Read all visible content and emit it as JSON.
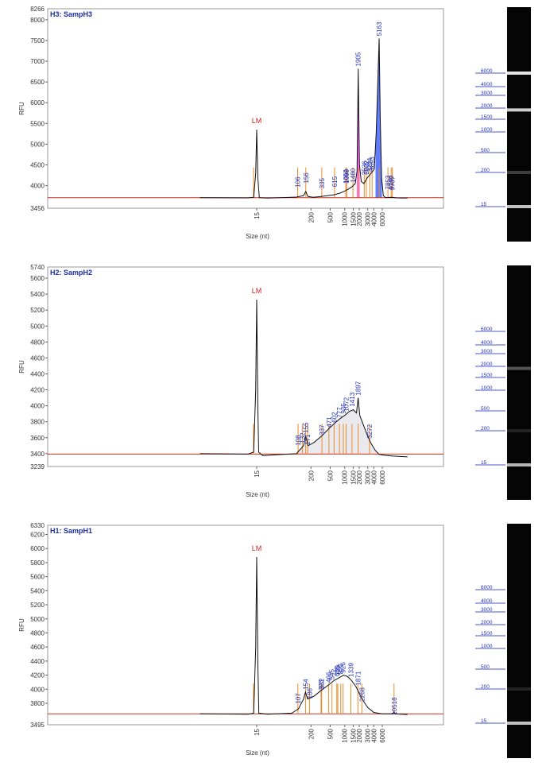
{
  "gel_ladder": [
    "6000",
    "4000",
    "3000",
    "2000",
    "1500",
    "1000",
    "500",
    "200",
    "15"
  ],
  "gel_ladder_nt": [
    6000,
    4000,
    3000,
    2000,
    1500,
    1000,
    500,
    200,
    15
  ],
  "chart_data": [
    {
      "type": "line",
      "title": "H3: SampH3",
      "xlabel": "Size (nt)",
      "ylabel": "RFU",
      "ymax_label": "8266",
      "ymin_label": "3456",
      "ylim": [
        3456,
        8266
      ],
      "yticks": [
        4000,
        4500,
        5000,
        5500,
        6000,
        6500,
        7000,
        7500,
        8000
      ],
      "xticks": [
        15,
        200,
        500,
        1000,
        1500,
        2000,
        3000,
        4000,
        6000
      ],
      "marker_label": "LM",
      "peak_labels": [
        {
          "text": "106",
          "x": 106,
          "y": 3900
        },
        {
          "text": "156",
          "x": 156,
          "y": 4000
        },
        {
          "text": "335",
          "x": 335,
          "y": 3870
        },
        {
          "text": "615",
          "x": 615,
          "y": 3910
        },
        {
          "text": "1052",
          "x": 1052,
          "y": 3990
        },
        {
          "text": "1099",
          "x": 1099,
          "y": 4000
        },
        {
          "text": "1480",
          "x": 1480,
          "y": 4020
        },
        {
          "text": "1905",
          "x": 1905,
          "y": 6820
        },
        {
          "text": "2536",
          "x": 2536,
          "y": 4200
        },
        {
          "text": "2802",
          "x": 2802,
          "y": 4210
        },
        {
          "text": "3294",
          "x": 3294,
          "y": 4270
        },
        {
          "text": "3693",
          "x": 3693,
          "y": 4300
        },
        {
          "text": "5163",
          "x": 5163,
          "y": 7550
        },
        {
          "text": "7853",
          "x": 7853,
          "y": 3850
        },
        {
          "text": "9190",
          "x": 9190,
          "y": 3850
        },
        {
          "text": "9707",
          "x": 9707,
          "y": 3830
        }
      ],
      "baseline": 3710,
      "marker": {
        "x": 15,
        "y": 5350
      },
      "curve": [
        [
          1.0,
          3710
        ],
        [
          10,
          3705
        ],
        [
          13,
          3720
        ],
        [
          14.3,
          4300
        ],
        [
          15,
          5350
        ],
        [
          15.8,
          4200
        ],
        [
          17,
          3710
        ],
        [
          25,
          3700
        ],
        [
          60,
          3715
        ],
        [
          100,
          3725
        ],
        [
          140,
          3760
        ],
        [
          156,
          3860
        ],
        [
          172,
          3740
        ],
        [
          220,
          3720
        ],
        [
          300,
          3735
        ],
        [
          450,
          3760
        ],
        [
          600,
          3780
        ],
        [
          800,
          3820
        ],
        [
          1000,
          3870
        ],
        [
          1200,
          3920
        ],
        [
          1400,
          3970
        ],
        [
          1650,
          4050
        ],
        [
          1800,
          4350
        ],
        [
          1905,
          6820
        ],
        [
          2020,
          4500
        ],
        [
          2200,
          4100
        ],
        [
          2500,
          4050
        ],
        [
          2900,
          4180
        ],
        [
          3300,
          4260
        ],
        [
          3700,
          4330
        ],
        [
          4100,
          4400
        ],
        [
          4500,
          5300
        ],
        [
          4850,
          6500
        ],
        [
          5163,
          7550
        ],
        [
          5450,
          5600
        ],
        [
          5800,
          4200
        ],
        [
          6300,
          3760
        ],
        [
          7000,
          3710
        ],
        [
          9000,
          3720
        ],
        [
          12000,
          3705
        ],
        [
          20000,
          3700
        ]
      ],
      "shaded": [
        {
          "from": 1780,
          "to": 2050,
          "color": "#ff55ff"
        },
        {
          "from": 4350,
          "to": 5900,
          "color": "#4466ff"
        }
      ],
      "lane_bands": [
        {
          "nt": 6000,
          "i": 0.95
        },
        {
          "nt": 1905,
          "i": 0.85
        },
        {
          "nt": 15,
          "i": 0.8
        },
        {
          "nt": 200,
          "i": 0.25
        }
      ]
    },
    {
      "type": "line",
      "title": "H2: SampH2",
      "xlabel": "Size (nt)",
      "ylabel": "RFU",
      "ymax_label": "5740",
      "ymin_label": "3239",
      "ylim": [
        3239,
        5740
      ],
      "yticks": [
        3400,
        3600,
        3800,
        4000,
        4200,
        4400,
        4600,
        4800,
        5000,
        5200,
        5400,
        5600
      ],
      "xticks": [
        15,
        200,
        500,
        1000,
        1500,
        2000,
        3000,
        4000,
        6000
      ],
      "marker_label": "LM",
      "peak_labels": [
        {
          "text": "108",
          "x": 108,
          "y": 3470
        },
        {
          "text": "132",
          "x": 132,
          "y": 3500
        },
        {
          "text": "155",
          "x": 155,
          "y": 3630
        },
        {
          "text": "171",
          "x": 171,
          "y": 3480
        },
        {
          "text": "337",
          "x": 337,
          "y": 3600
        },
        {
          "text": "471",
          "x": 471,
          "y": 3700
        },
        {
          "text": "602",
          "x": 602,
          "y": 3760
        },
        {
          "text": "777",
          "x": 777,
          "y": 3820
        },
        {
          "text": "935",
          "x": 935,
          "y": 3870
        },
        {
          "text": "1072",
          "x": 1072,
          "y": 3900
        },
        {
          "text": "1413",
          "x": 1413,
          "y": 3960
        },
        {
          "text": "1897",
          "x": 1897,
          "y": 4100
        },
        {
          "text": "3272",
          "x": 3272,
          "y": 3560
        }
      ],
      "baseline": 3395,
      "marker": {
        "x": 15,
        "y": 5330
      },
      "curve": [
        [
          1.0,
          3400
        ],
        [
          10,
          3395
        ],
        [
          13,
          3420
        ],
        [
          14.3,
          4200
        ],
        [
          15,
          5330
        ],
        [
          15.8,
          4000
        ],
        [
          16.5,
          3420
        ],
        [
          20,
          3375
        ],
        [
          50,
          3390
        ],
        [
          100,
          3400
        ],
        [
          140,
          3500
        ],
        [
          155,
          3620
        ],
        [
          175,
          3500
        ],
        [
          230,
          3540
        ],
        [
          330,
          3620
        ],
        [
          480,
          3720
        ],
        [
          640,
          3790
        ],
        [
          800,
          3840
        ],
        [
          1000,
          3880
        ],
        [
          1250,
          3930
        ],
        [
          1500,
          3950
        ],
        [
          1750,
          3910
        ],
        [
          1897,
          4100
        ],
        [
          2050,
          3880
        ],
        [
          2400,
          3770
        ],
        [
          2900,
          3640
        ],
        [
          3500,
          3530
        ],
        [
          4300,
          3440
        ],
        [
          5200,
          3390
        ],
        [
          6500,
          3380
        ],
        [
          10000,
          3370
        ],
        [
          20000,
          3360
        ]
      ],
      "fill_light": {
        "from": 100,
        "to": 6500,
        "color": "#e9e9ee"
      },
      "lane_bands": [
        {
          "nt": 15,
          "i": 0.75
        },
        {
          "nt": 1897,
          "i": 0.35
        },
        {
          "nt": 200,
          "i": 0.15
        }
      ]
    },
    {
      "type": "line",
      "title": "H1: SampH1",
      "xlabel": "Size (nt)",
      "ylabel": "RFU",
      "ymax_label": "6330",
      "ymin_label": "3495",
      "ylim": [
        3495,
        6330
      ],
      "yticks": [
        3800,
        4000,
        4200,
        4400,
        4600,
        4800,
        5000,
        5200,
        5400,
        5600,
        5800,
        6000,
        6200
      ],
      "xticks": [
        15,
        200,
        500,
        1000,
        1500,
        2000,
        3000,
        4000,
        6000
      ],
      "marker_label": "LM",
      "peak_labels": [
        {
          "text": "107",
          "x": 107,
          "y": 3760
        },
        {
          "text": "154",
          "x": 154,
          "y": 3960
        },
        {
          "text": "186",
          "x": 186,
          "y": 3830
        },
        {
          "text": "323",
          "x": 323,
          "y": 3950
        },
        {
          "text": "332",
          "x": 332,
          "y": 3970
        },
        {
          "text": "466",
          "x": 466,
          "y": 4060
        },
        {
          "text": "545",
          "x": 545,
          "y": 4100
        },
        {
          "text": "685",
          "x": 685,
          "y": 4150
        },
        {
          "text": "720",
          "x": 720,
          "y": 4160
        },
        {
          "text": "827",
          "x": 827,
          "y": 4180
        },
        {
          "text": "926",
          "x": 926,
          "y": 4200
        },
        {
          "text": "1339",
          "x": 1339,
          "y": 4140
        },
        {
          "text": "1871",
          "x": 1871,
          "y": 4020
        },
        {
          "text": "2268",
          "x": 2268,
          "y": 3790
        },
        {
          "text": "10518",
          "x": 10518,
          "y": 3600
        }
      ],
      "baseline": 3650,
      "marker": {
        "x": 15,
        "y": 5880
      },
      "curve": [
        [
          1.0,
          3650
        ],
        [
          10,
          3645
        ],
        [
          13,
          3660
        ],
        [
          14.3,
          4600
        ],
        [
          15,
          5880
        ],
        [
          15.8,
          4400
        ],
        [
          16.6,
          3660
        ],
        [
          25,
          3645
        ],
        [
          80,
          3660
        ],
        [
          110,
          3720
        ],
        [
          140,
          3860
        ],
        [
          154,
          3960
        ],
        [
          170,
          3860
        ],
        [
          230,
          3900
        ],
        [
          320,
          3980
        ],
        [
          460,
          4060
        ],
        [
          620,
          4130
        ],
        [
          800,
          4170
        ],
        [
          950,
          4200
        ],
        [
          1150,
          4180
        ],
        [
          1400,
          4120
        ],
        [
          1700,
          4040
        ],
        [
          2000,
          3940
        ],
        [
          2500,
          3820
        ],
        [
          3000,
          3740
        ],
        [
          4000,
          3670
        ],
        [
          6000,
          3650
        ],
        [
          10000,
          3650
        ],
        [
          10518,
          3680
        ],
        [
          11000,
          3650
        ],
        [
          20000,
          3640
        ]
      ],
      "lane_bands": [
        {
          "nt": 15,
          "i": 0.8
        },
        {
          "nt": 200,
          "i": 0.15
        }
      ]
    }
  ]
}
